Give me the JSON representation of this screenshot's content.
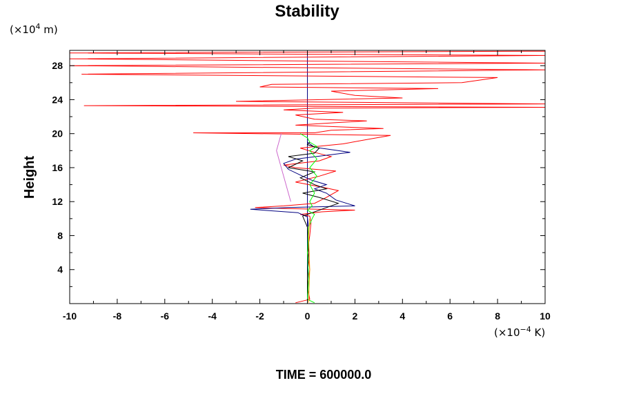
{
  "chart_data": {
    "type": "line",
    "title": "Stability",
    "ylabel": "Height",
    "xlabel": "",
    "y_unit": {
      "prefix": "(×10",
      "exp": "4",
      "suffix": " m)"
    },
    "x_unit": {
      "prefix": "(×10",
      "exp": "−4",
      "suffix": " K)"
    },
    "footer": "TIME = 600000.0",
    "xlim": [
      -10,
      10
    ],
    "ylim": [
      0,
      29.8
    ],
    "x_ticks": [
      "-10",
      "-8",
      "-6",
      "-4",
      "-2",
      "0",
      "2",
      "4",
      "6",
      "8",
      "10"
    ],
    "y_ticks": [
      "4",
      "8",
      "12",
      "16",
      "20",
      "24",
      "28"
    ],
    "grid": false,
    "series": [
      {
        "color": "#ff0000",
        "points": [
          [
            -0.5,
            0.1
          ],
          [
            0.1,
            0.5
          ],
          [
            0,
            2
          ],
          [
            0.1,
            4
          ],
          [
            0,
            6
          ],
          [
            0.1,
            8
          ],
          [
            0.15,
            9.5
          ],
          [
            0.1,
            10.3
          ],
          [
            -0.3,
            10.5
          ],
          [
            0.6,
            10.8
          ],
          [
            2,
            11
          ],
          [
            -1,
            11.2
          ],
          [
            -2.2,
            11.3
          ],
          [
            -1,
            11.5
          ],
          [
            0.3,
            11.8
          ],
          [
            0.8,
            12.5
          ],
          [
            1.3,
            13.3
          ],
          [
            0.8,
            13.6
          ],
          [
            -0.5,
            14.3
          ],
          [
            0.5,
            15
          ],
          [
            1.2,
            15.6
          ],
          [
            -0.5,
            16
          ],
          [
            -1,
            16.3
          ],
          [
            0.5,
            16.8
          ],
          [
            1,
            17.3
          ],
          [
            0.3,
            17.8
          ],
          [
            -0.3,
            18.3
          ],
          [
            1.5,
            18.8
          ],
          [
            2.5,
            19.3
          ],
          [
            3.5,
            19.8
          ],
          [
            -4.8,
            20.1
          ],
          [
            0.3,
            20.1
          ],
          [
            1,
            20.4
          ],
          [
            3.2,
            20.6
          ],
          [
            -0.5,
            21
          ],
          [
            1.2,
            21.3
          ],
          [
            2.5,
            21.5
          ],
          [
            0.3,
            21.7
          ],
          [
            -0.5,
            22.2
          ],
          [
            1.5,
            22.5
          ],
          [
            -1,
            22.8
          ],
          [
            0.3,
            23
          ],
          [
            10,
            23.1
          ],
          [
            -9.4,
            23.3
          ],
          [
            10,
            23.5
          ],
          [
            -3,
            23.8
          ],
          [
            4,
            24.2
          ],
          [
            2,
            24.5
          ],
          [
            1,
            25
          ],
          [
            5.5,
            25.3
          ],
          [
            -2,
            25.5
          ],
          [
            -1.5,
            25.8
          ],
          [
            6.5,
            26
          ],
          [
            8,
            26.6
          ],
          [
            -9.5,
            27
          ],
          [
            10,
            27.5
          ],
          [
            -10,
            28
          ],
          [
            10,
            28.3
          ],
          [
            -10,
            28.8
          ],
          [
            10,
            29.2
          ],
          [
            -10,
            29.5
          ],
          [
            10,
            29.7
          ]
        ]
      },
      {
        "color": "#000080",
        "points": [
          [
            0,
            0.1
          ],
          [
            0.05,
            3
          ],
          [
            0,
            6
          ],
          [
            0.05,
            9
          ],
          [
            0,
            10.2
          ],
          [
            -0.4,
            10.7
          ],
          [
            -2.4,
            11.1
          ],
          [
            -0.8,
            11.3
          ],
          [
            2,
            11.5
          ],
          [
            1.2,
            12.2
          ],
          [
            0.8,
            13
          ],
          [
            0.3,
            13.5
          ],
          [
            0.8,
            14
          ],
          [
            0.2,
            14.5
          ],
          [
            -0.2,
            15
          ],
          [
            -0.8,
            15.8
          ],
          [
            -1,
            16.5
          ],
          [
            -0.5,
            17
          ],
          [
            1.8,
            17.8
          ],
          [
            0.3,
            18.4
          ],
          [
            0,
            19
          ]
        ]
      },
      {
        "color": "#000000",
        "points": [
          [
            0,
            0.1
          ],
          [
            0,
            3
          ],
          [
            0.05,
            6
          ],
          [
            0,
            9
          ],
          [
            -0.2,
            10.3
          ],
          [
            1.3,
            11.8
          ],
          [
            0.5,
            12.5
          ],
          [
            -0.2,
            13
          ],
          [
            0.8,
            13.5
          ],
          [
            0.3,
            14
          ],
          [
            -0.3,
            14.8
          ],
          [
            0.3,
            15.5
          ],
          [
            -0.8,
            16
          ],
          [
            -0.2,
            16.8
          ],
          [
            -0.8,
            17.3
          ],
          [
            0.3,
            17.7
          ],
          [
            0.5,
            18.3
          ],
          [
            0,
            18.7
          ],
          [
            0.1,
            19
          ]
        ]
      },
      {
        "color": "#00ff00",
        "points": [
          [
            0.3,
            0.1
          ],
          [
            0,
            0.5
          ],
          [
            0.05,
            3
          ],
          [
            0,
            6
          ],
          [
            0.05,
            9
          ],
          [
            0.2,
            10
          ],
          [
            0.3,
            10.5
          ],
          [
            0,
            11
          ],
          [
            0.2,
            11.5
          ],
          [
            0.1,
            12
          ],
          [
            0.3,
            13
          ],
          [
            0.1,
            14
          ],
          [
            0.4,
            15
          ],
          [
            0.1,
            16
          ],
          [
            0.4,
            17
          ],
          [
            0.1,
            18
          ],
          [
            0.4,
            18.5
          ],
          [
            0.1,
            19
          ],
          [
            0,
            19.5
          ],
          [
            -0.3,
            20
          ]
        ]
      },
      {
        "color": "#ffa500",
        "points": [
          [
            0.05,
            0.1
          ],
          [
            0.1,
            4
          ],
          [
            0.05,
            8
          ],
          [
            0.1,
            10
          ]
        ]
      },
      {
        "color": "#cc66cc",
        "points": [
          [
            -0.7,
            12
          ],
          [
            -0.9,
            14
          ],
          [
            -1.1,
            16
          ],
          [
            -1.3,
            18
          ],
          [
            -1.1,
            20
          ]
        ]
      }
    ],
    "reference_lines": {
      "x_zero": true,
      "x_zero_color": "#000080"
    }
  }
}
